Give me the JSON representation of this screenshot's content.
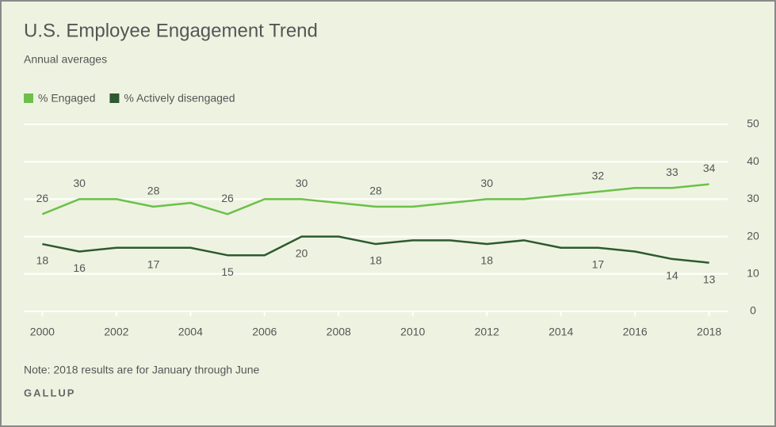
{
  "chart_data": {
    "type": "line",
    "title": "U.S. Employee Engagement Trend",
    "subtitle": "Annual averages",
    "note": "Note: 2018 results are for January through June",
    "source": "GALLUP",
    "x": [
      2000,
      2001,
      2002,
      2003,
      2004,
      2005,
      2006,
      2007,
      2008,
      2009,
      2010,
      2011,
      2012,
      2013,
      2014,
      2015,
      2016,
      2017,
      2018
    ],
    "series": [
      {
        "name": "% Engaged",
        "color": "#6cc04a",
        "values": [
          26,
          30,
          30,
          28,
          29,
          26,
          30,
          30,
          29,
          28,
          28,
          29,
          30,
          30,
          31,
          32,
          33,
          33,
          34
        ],
        "value_labels": [
          "26",
          "30",
          null,
          "28",
          null,
          "26",
          null,
          "30",
          null,
          "28",
          null,
          null,
          "30",
          null,
          null,
          "32",
          null,
          "33",
          "34"
        ]
      },
      {
        "name": "% Actively disengaged",
        "color": "#2d5a30",
        "values": [
          18,
          16,
          17,
          17,
          17,
          15,
          15,
          20,
          20,
          18,
          19,
          19,
          18,
          19,
          17,
          17,
          16,
          14,
          13
        ],
        "value_labels": [
          "18",
          "16",
          null,
          "17",
          null,
          "15",
          null,
          "20",
          null,
          "18",
          null,
          null,
          "18",
          null,
          null,
          "17",
          null,
          "14",
          "13"
        ]
      }
    ],
    "xlim": [
      1999.5,
      2018.5
    ],
    "xticks": [
      2000,
      2002,
      2004,
      2006,
      2008,
      2010,
      2012,
      2014,
      2016,
      2018
    ],
    "ylim": [
      0,
      50
    ],
    "yticks": [
      0,
      10,
      20,
      30,
      40,
      50
    ],
    "grid": true
  }
}
